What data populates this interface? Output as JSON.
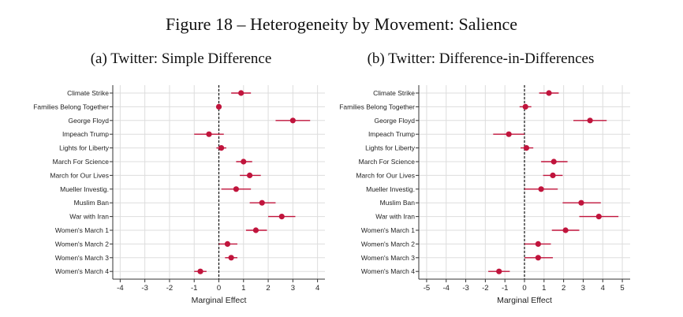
{
  "figure": {
    "title": "Figure 18 – Heterogeneity by Movement: Salience"
  },
  "colors": {
    "point": "#c0143c",
    "ci": "#c0143c",
    "grid": "#dddddd",
    "axis": "#333333"
  },
  "chart_data": [
    {
      "type": "scatter",
      "title": "(a) Twitter: Simple Difference",
      "xlabel": "Marginal Effect",
      "ylabel": "",
      "xlim": [
        -4.3,
        4.3
      ],
      "xticks": [
        -4,
        -3,
        -2,
        -1,
        0,
        1,
        2,
        3,
        4
      ],
      "reference_line": 0,
      "grid": true,
      "categories": [
        "Climate Strike",
        "Families Belong Together",
        "George Floyd",
        "Impeach Trump",
        "Lights for Liberty",
        "March For Science",
        "March for Our Lives",
        "Mueller Investig.",
        "Muslim Ban",
        "War with Iran",
        "Women's March 1",
        "Women's March 2",
        "Women's March 3",
        "Women's March 4"
      ],
      "estimate": [
        0.9,
        0.0,
        3.0,
        -0.4,
        0.1,
        1.0,
        1.25,
        0.7,
        1.75,
        2.55,
        1.5,
        0.35,
        0.5,
        -0.75
      ],
      "ci_low": [
        0.5,
        -0.1,
        2.3,
        -1.0,
        -0.1,
        0.7,
        0.85,
        0.1,
        1.25,
        2.0,
        1.1,
        0.0,
        0.25,
        -1.0
      ],
      "ci_high": [
        1.3,
        0.1,
        3.7,
        0.2,
        0.3,
        1.35,
        1.7,
        1.3,
        2.3,
        3.1,
        1.95,
        0.75,
        0.75,
        -0.5
      ]
    },
    {
      "type": "scatter",
      "title": "(b) Twitter: Difference-in-Differences",
      "xlabel": "Marginal Effect",
      "ylabel": "",
      "xlim": [
        -5.4,
        5.4
      ],
      "xticks": [
        -5,
        -4,
        -3,
        -2,
        -1,
        0,
        1,
        2,
        3,
        4,
        5
      ],
      "reference_line": 0,
      "grid": true,
      "categories": [
        "Climate Strike",
        "Families Belong Together",
        "George Floyd",
        "Impeach Trump",
        "Lights for Liberty",
        "March For Science",
        "March for Our Lives",
        "Mueller Investig.",
        "Muslim Ban",
        "War with Iran",
        "Women's March 1",
        "Women's March 2",
        "Women's March 3",
        "Women's March 4"
      ],
      "estimate": [
        1.25,
        0.05,
        3.35,
        -0.8,
        0.1,
        1.5,
        1.45,
        0.85,
        2.9,
        3.8,
        2.1,
        0.7,
        0.7,
        -1.3
      ],
      "ci_low": [
        0.75,
        -0.25,
        2.5,
        -1.6,
        -0.2,
        0.85,
        0.95,
        0.0,
        1.95,
        2.8,
        1.4,
        0.0,
        0.0,
        -1.85
      ],
      "ci_high": [
        1.75,
        0.35,
        4.2,
        0.0,
        0.45,
        2.2,
        1.95,
        1.7,
        3.9,
        4.8,
        2.8,
        1.35,
        1.45,
        -0.75
      ]
    }
  ]
}
